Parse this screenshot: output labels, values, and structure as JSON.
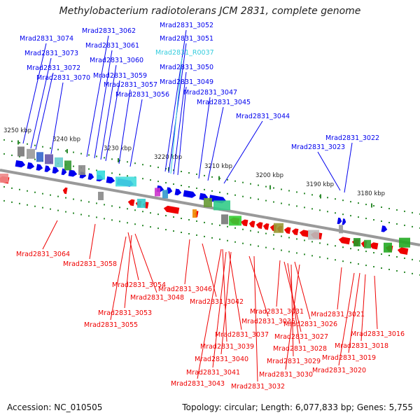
{
  "title": "Methylobacterium radiotolerans JCM 2831, complete genome",
  "accession": "Accession: NC_010505",
  "summary": "Topology: circular; Length: 6,077,833 bp; Genes: 5,755",
  "colors": {
    "forward": "#0000ee",
    "reverse": "#ee0000",
    "rna": "#33ccdd",
    "backbone": "#999999",
    "tick": "#2e8b2e"
  },
  "kbp_labels": [
    "3250 kbp",
    "3240 kbp",
    "3230 kbp",
    "3220 kbp",
    "3210 kbp",
    "3200 kbp",
    "3190 kbp",
    "3180 kbp"
  ],
  "top_labels": [
    {
      "text": "Mrad2831_3074",
      "kind": "forward"
    },
    {
      "text": "Mrad2831_3073",
      "kind": "forward"
    },
    {
      "text": "Mrad2831_3072",
      "kind": "forward"
    },
    {
      "text": "Mrad2831_3070",
      "kind": "forward"
    },
    {
      "text": "Mrad2831_3062",
      "kind": "forward"
    },
    {
      "text": "Mrad2831_3061",
      "kind": "forward"
    },
    {
      "text": "Mrad2831_3060",
      "kind": "forward"
    },
    {
      "text": "Mrad2831_3059",
      "kind": "forward"
    },
    {
      "text": "Mrad2831_3057",
      "kind": "forward"
    },
    {
      "text": "Mrad2831_3056",
      "kind": "forward"
    },
    {
      "text": "Mrad2831_3052",
      "kind": "forward"
    },
    {
      "text": "Mrad2831_3051",
      "kind": "forward"
    },
    {
      "text": "Mrad2831_R0037",
      "kind": "rna"
    },
    {
      "text": "Mrad2831_3050",
      "kind": "forward"
    },
    {
      "text": "Mrad2831_3049",
      "kind": "forward"
    },
    {
      "text": "Mrad2831_3047",
      "kind": "forward"
    },
    {
      "text": "Mrad2831_3045",
      "kind": "forward"
    },
    {
      "text": "Mrad2831_3044",
      "kind": "forward"
    },
    {
      "text": "Mrad2831_3022",
      "kind": "forward"
    },
    {
      "text": "Mrad2831_3023",
      "kind": "forward"
    }
  ],
  "bottom_labels": [
    {
      "text": "Mrad2831_3064",
      "kind": "reverse"
    },
    {
      "text": "Mrad2831_3058",
      "kind": "reverse"
    },
    {
      "text": "Mrad2831_3054",
      "kind": "reverse"
    },
    {
      "text": "Mrad2831_3046",
      "kind": "reverse"
    },
    {
      "text": "Mrad2831_3048",
      "kind": "reverse"
    },
    {
      "text": "Mrad2831_3042",
      "kind": "reverse"
    },
    {
      "text": "Mrad2831_3053",
      "kind": "reverse"
    },
    {
      "text": "Mrad2831_3055",
      "kind": "reverse"
    },
    {
      "text": "Mrad2831_3031",
      "kind": "reverse"
    },
    {
      "text": "Mrad2831_3021",
      "kind": "reverse"
    },
    {
      "text": "Mrad2831_3035",
      "kind": "reverse"
    },
    {
      "text": "Mrad2831_3026",
      "kind": "reverse"
    },
    {
      "text": "Mrad2831_3037",
      "kind": "reverse"
    },
    {
      "text": "Mrad2831_3027",
      "kind": "reverse"
    },
    {
      "text": "Mrad2831_3016",
      "kind": "reverse"
    },
    {
      "text": "Mrad2831_3039",
      "kind": "reverse"
    },
    {
      "text": "Mrad2831_3028",
      "kind": "reverse"
    },
    {
      "text": "Mrad2831_3018",
      "kind": "reverse"
    },
    {
      "text": "Mrad2831_3040",
      "kind": "reverse"
    },
    {
      "text": "Mrad2831_3029",
      "kind": "reverse"
    },
    {
      "text": "Mrad2831_3019",
      "kind": "reverse"
    },
    {
      "text": "Mrad2831_3041",
      "kind": "reverse"
    },
    {
      "text": "Mrad2831_3030",
      "kind": "reverse"
    },
    {
      "text": "Mrad2831_3020",
      "kind": "reverse"
    },
    {
      "text": "Mrad2831_3043",
      "kind": "reverse"
    },
    {
      "text": "Mrad2831_3032",
      "kind": "reverse"
    }
  ]
}
